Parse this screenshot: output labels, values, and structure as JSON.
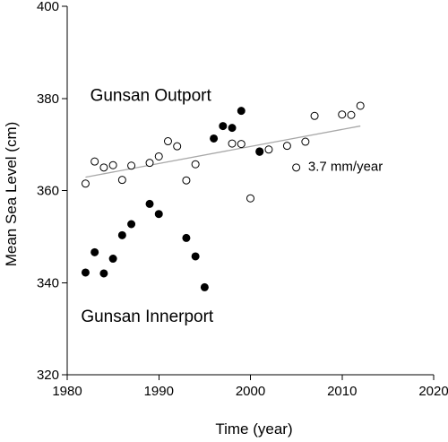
{
  "chart_data": {
    "type": "scatter",
    "xlabel": "Time (year)",
    "ylabel": "Mean Sea Level (cm)",
    "xlim": [
      1980,
      2020
    ],
    "ylim": [
      320,
      400
    ],
    "xticks": [
      "1980",
      "1990",
      "2000",
      "2010",
      "2020"
    ],
    "yticks": [
      "320",
      "340",
      "360",
      "380",
      "400"
    ],
    "grid": false,
    "series": [
      {
        "name": "Gunsan Outport",
        "marker": "open-circle",
        "color": "#000000",
        "x": [
          1982,
          1983,
          1984,
          1985,
          1986,
          1987,
          1989,
          1990,
          1991,
          1992,
          1993,
          1994,
          1998,
          1999,
          2000,
          2001,
          2002,
          2004,
          2005,
          2006,
          2007,
          2010,
          2011,
          2012
        ],
        "y": [
          361.5,
          366.3,
          365,
          365.5,
          362.3,
          365.4,
          366,
          367.4,
          370.7,
          369.6,
          362.2,
          365.7,
          370.2,
          370.1,
          358.3,
          368.4,
          368.9,
          369.7,
          365,
          370.6,
          376.2,
          376.5,
          376.4,
          378.4
        ]
      },
      {
        "name": "Gunsan Innerport",
        "marker": "filled-circle",
        "color": "#000000",
        "x": [
          1982,
          1983,
          1984,
          1985,
          1986,
          1987,
          1989,
          1990,
          1993,
          1994,
          1995,
          1996,
          1997,
          1998,
          1999,
          2001
        ],
        "y": [
          342.2,
          346.6,
          342,
          345.2,
          350.3,
          352.7,
          357.1,
          354.9,
          349.7,
          345.7,
          339,
          371.3,
          374,
          373.6,
          377.3,
          368.5
        ]
      }
    ],
    "trend": {
      "label": "3.7 mm/year",
      "color": "#a8a8a8",
      "x": [
        1982,
        2012
      ],
      "y": [
        362.9,
        374
      ]
    },
    "annotations": [
      {
        "text": "Gunsan Outport",
        "x": 1982.5,
        "y": 379.5
      },
      {
        "text": "Gunsan Innerport",
        "x": 1981.5,
        "y": 331.5
      }
    ]
  }
}
